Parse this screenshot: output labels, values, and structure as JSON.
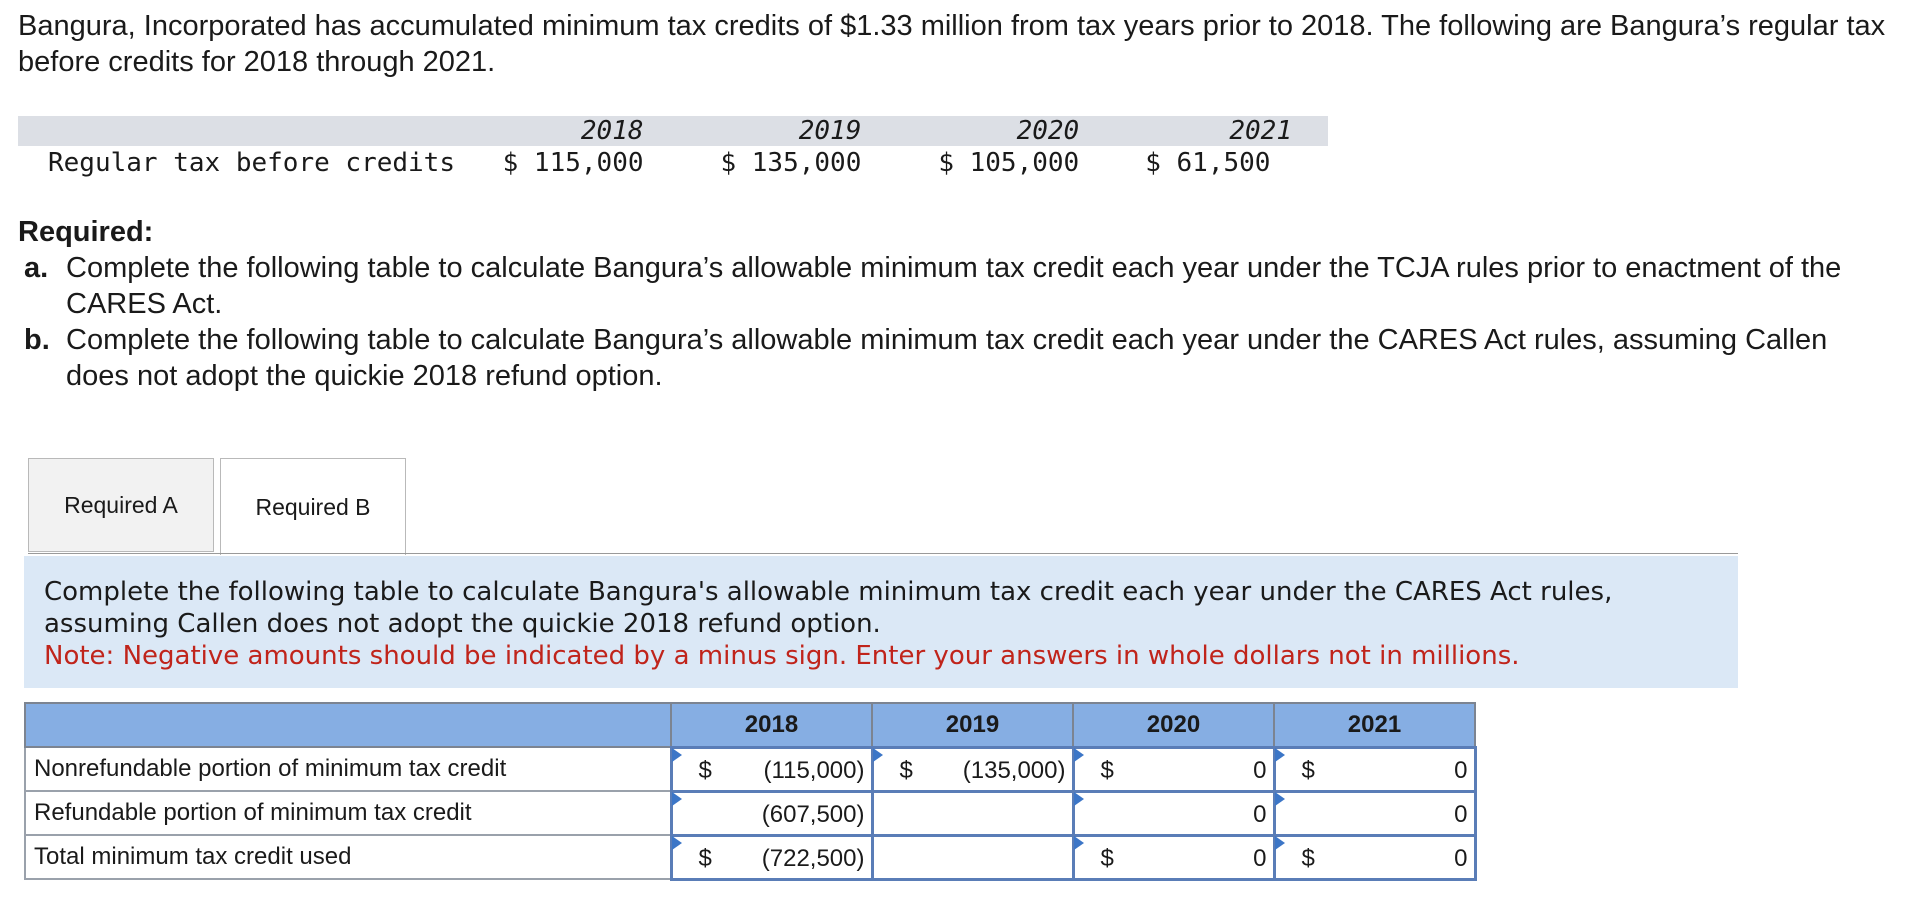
{
  "intro": "Bangura, Incorporated has accumulated minimum tax credits of $1.33 million from tax years prior to 2018. The following are Bangura’s regular tax before credits for 2018 through 2021.",
  "given_table": {
    "years": [
      "2018",
      "2019",
      "2020",
      "2021"
    ],
    "label": "Regular tax before credits",
    "values": [
      "$ 115,000",
      "$ 135,000",
      "$ 105,000",
      "$ 61,500"
    ]
  },
  "required": {
    "heading": "Required:",
    "items": [
      {
        "letter": "a.",
        "text": "Complete the following table to calculate Bangura’s allowable minimum tax credit each year under the TCJA rules prior to enactment of the CARES Act."
      },
      {
        "letter": "b.",
        "text": "Complete the following table to calculate Bangura’s allowable minimum tax credit each year under the CARES Act rules, assuming Callen does not adopt the quickie 2018 refund option."
      }
    ]
  },
  "tabs": {
    "a": "Required A",
    "b": "Required B"
  },
  "panel": {
    "instruction": "Complete the following table to calculate Bangura's allowable minimum tax credit each year under the CARES Act rules, assuming Callen does not adopt the quickie 2018 refund option.",
    "note": "Note: Negative amounts should be indicated by a minus sign. Enter your answers in whole dollars not in millions."
  },
  "answer_table": {
    "years": [
      "2018",
      "2019",
      "2020",
      "2021"
    ],
    "rows": [
      {
        "label": "Nonrefundable portion of minimum tax credit",
        "cells": [
          {
            "cur": "$",
            "val": "(115,000)"
          },
          {
            "cur": "$",
            "val": "(135,000)"
          },
          {
            "cur": "$",
            "val": "0"
          },
          {
            "cur": "$",
            "val": "0"
          }
        ]
      },
      {
        "label": "Refundable portion of minimum tax credit",
        "cells": [
          {
            "cur": "",
            "val": "(607,500)"
          },
          {
            "cur": "",
            "val": ""
          },
          {
            "cur": "",
            "val": "0"
          },
          {
            "cur": "",
            "val": "0"
          }
        ]
      },
      {
        "label": "Total minimum tax credit used",
        "cells": [
          {
            "cur": "$",
            "val": "(722,500)"
          },
          {
            "cur": "",
            "val": ""
          },
          {
            "cur": "$",
            "val": "0"
          },
          {
            "cur": "$",
            "val": "0"
          }
        ]
      }
    ]
  }
}
